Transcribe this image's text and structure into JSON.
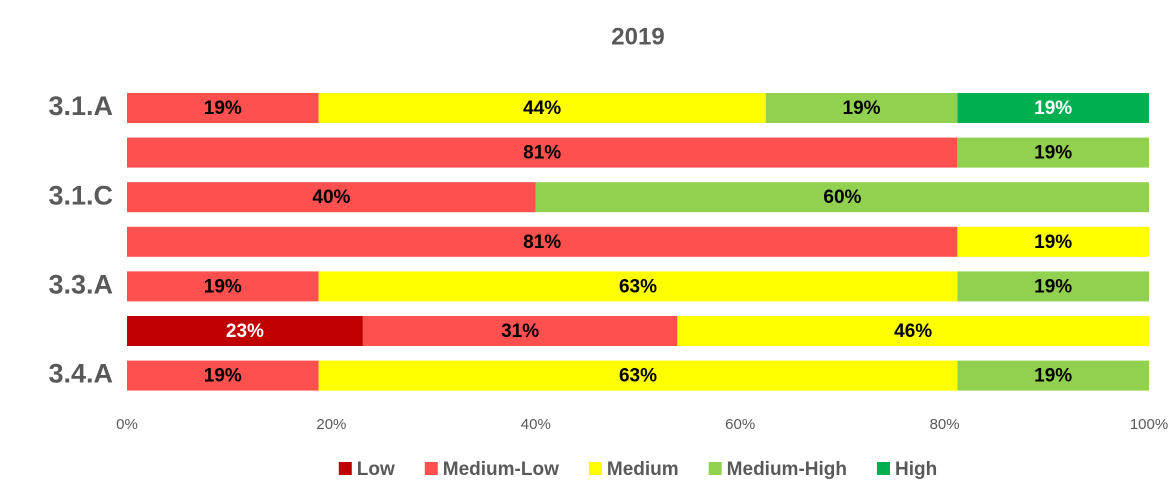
{
  "chart_data": {
    "type": "stacked_bar_horizontal",
    "title": "2019",
    "categories": [
      "3.1.A",
      null,
      "3.1.C",
      null,
      "3.3.A",
      null,
      "3.4.A"
    ],
    "series": [
      {
        "name": "Low",
        "color": "#c00000",
        "values": [
          null,
          null,
          null,
          null,
          null,
          23.08,
          null
        ],
        "value_labels": [
          null,
          null,
          null,
          null,
          null,
          "23%",
          null
        ]
      },
      {
        "name": "Medium-Low",
        "color": "#ff5050",
        "values": [
          18.75,
          81.25,
          40,
          81.25,
          18.75,
          30.77,
          18.75
        ],
        "value_labels": [
          "19%",
          "81%",
          "40%",
          "81%",
          "19%",
          "31%",
          "19%"
        ]
      },
      {
        "name": "Medium",
        "color": "#ffff00",
        "values": [
          43.75,
          null,
          null,
          18.75,
          62.5,
          46.15,
          62.5
        ],
        "value_labels": [
          "44%",
          null,
          null,
          "19%",
          "63%",
          "46%",
          "63%"
        ]
      },
      {
        "name": "Medium-High",
        "color": "#92d050",
        "values": [
          18.75,
          18.75,
          60,
          null,
          18.75,
          null,
          18.75
        ],
        "value_labels": [
          "19%",
          "19%",
          "60%",
          null,
          "19%",
          null,
          "19%"
        ]
      },
      {
        "name": "High",
        "color": "#00b050",
        "values": [
          18.75,
          null,
          null,
          null,
          null,
          null,
          null
        ],
        "value_labels": [
          "19%",
          null,
          null,
          null,
          null,
          null,
          null
        ]
      }
    ],
    "xlim": [
      0,
      100
    ],
    "xticks": [
      {
        "value": 0,
        "label": "0%"
      },
      {
        "value": 20,
        "label": "20%"
      },
      {
        "value": 40,
        "label": "40%"
      },
      {
        "value": 60,
        "label": "60%"
      },
      {
        "value": 80,
        "label": "80%"
      },
      {
        "value": 100,
        "label": "100%"
      }
    ],
    "grid": false,
    "legend": "bottom"
  }
}
